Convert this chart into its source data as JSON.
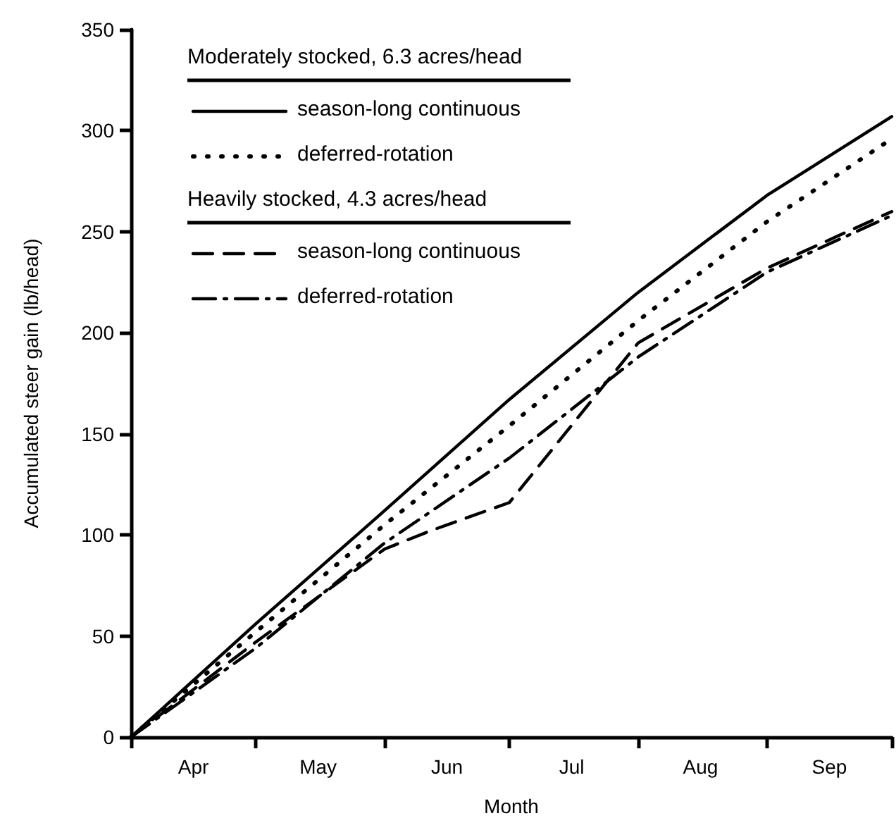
{
  "chart_data": {
    "type": "line",
    "xlabel": "Month",
    "ylabel": "Accumulated steer gain (lb/head)",
    "x": [
      "--04-01",
      "--05-01",
      "--06-01",
      "--07-01",
      "--08-01",
      "--09-01",
      "--10-01"
    ],
    "xlim": [
      "--04-01",
      "--10-01"
    ],
    "xticks": [
      {
        "value": "--04-01",
        "label": null
      },
      {
        "value": "--04-16",
        "label": "Apr"
      },
      {
        "value": "--05-01",
        "label": null
      },
      {
        "value": "--05-16",
        "label": "May"
      },
      {
        "value": "--06-01",
        "label": null
      },
      {
        "value": "--06-16",
        "label": "Jun"
      },
      {
        "value": "--07-01",
        "label": null
      },
      {
        "value": "--07-16",
        "label": "Jul"
      },
      {
        "value": "--08-01",
        "label": null
      },
      {
        "value": "--08-16",
        "label": "Aug"
      },
      {
        "value": "--09-01",
        "label": null
      },
      {
        "value": "--09-16",
        "label": "Sep"
      },
      {
        "value": "--10-01",
        "label": null
      }
    ],
    "ylim": [
      0,
      350
    ],
    "yticks": [
      0,
      50,
      100,
      150,
      200,
      250,
      300,
      350
    ],
    "grid": false,
    "legend": "top left",
    "marker": "none",
    "annotations": [
      "Moderately stocked, 6.3 acres/head",
      "Heavily stocked, 4.3 acres/head"
    ],
    "series": [
      {
        "name": "season-long continuous",
        "color": "#000000",
        "line_style": "solid",
        "values": [
          0,
          56,
          112,
          167,
          220,
          268,
          307
        ]
      },
      {
        "name": "deferred-rotation",
        "color": "#000000",
        "line_style": "dotted",
        "values": [
          0,
          52,
          105,
          154,
          206,
          255,
          296
        ]
      },
      {
        "name": "season-long continuous",
        "color": "#000000",
        "line_style": "dashed",
        "x": [
          "--04-01",
          "--05-01",
          "--06-01",
          "--06-12",
          "--07-01",
          "--08-01",
          "--09-01",
          "--10-01"
        ],
        "values": [
          0,
          47,
          93,
          102,
          116,
          195,
          232,
          260
        ]
      },
      {
        "name": "deferred-rotation",
        "color": "#000000",
        "line_style": "dashdot",
        "values": [
          0,
          44,
          96,
          138,
          188,
          230,
          258
        ]
      }
    ]
  }
}
